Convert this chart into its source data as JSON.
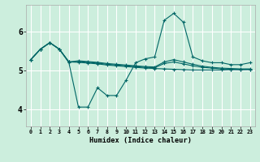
{
  "xlabel": "Humidex (Indice chaleur)",
  "background_color": "#cceedd",
  "grid_color": "#ffffff",
  "line_color": "#006666",
  "xlim": [
    -0.5,
    23.5
  ],
  "ylim": [
    3.55,
    6.7
  ],
  "yticks": [
    4,
    5,
    6
  ],
  "xticks": [
    0,
    1,
    2,
    3,
    4,
    5,
    6,
    7,
    8,
    9,
    10,
    11,
    12,
    13,
    14,
    15,
    16,
    17,
    18,
    19,
    20,
    21,
    22,
    23
  ],
  "series_jagged": [
    5.28,
    5.55,
    5.72,
    5.55,
    5.2,
    4.05,
    4.05,
    4.55,
    4.35,
    4.35,
    4.75,
    5.2,
    5.3,
    5.35,
    6.3,
    6.48,
    6.25,
    5.35,
    5.25,
    5.2,
    5.2,
    5.15,
    5.15,
    5.2
  ],
  "series_smooth1": [
    5.28,
    5.55,
    5.72,
    5.55,
    5.22,
    5.21,
    5.19,
    5.17,
    5.14,
    5.12,
    5.1,
    5.08,
    5.06,
    5.05,
    5.04,
    5.03,
    5.02,
    5.01,
    5.01,
    5.01,
    5.01,
    5.02,
    5.02,
    5.03
  ],
  "series_smooth2": [
    5.28,
    5.55,
    5.72,
    5.55,
    5.22,
    5.23,
    5.21,
    5.19,
    5.16,
    5.14,
    5.12,
    5.1,
    5.08,
    5.07,
    5.18,
    5.22,
    5.17,
    5.12,
    5.08,
    5.06,
    5.04,
    5.03,
    5.02,
    5.02
  ],
  "series_smooth3": [
    5.28,
    5.55,
    5.72,
    5.55,
    5.22,
    5.25,
    5.23,
    5.21,
    5.18,
    5.16,
    5.14,
    5.12,
    5.1,
    5.09,
    5.22,
    5.28,
    5.22,
    5.16,
    5.11,
    5.08,
    5.06,
    5.05,
    5.04,
    5.04
  ]
}
